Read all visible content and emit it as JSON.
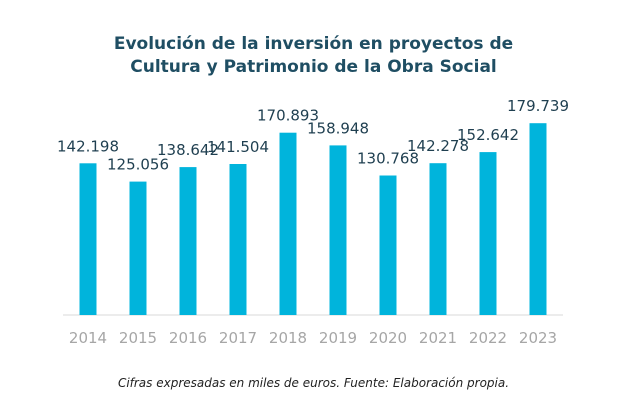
{
  "chart_data": {
    "type": "bar",
    "title_line1": "Evolución de la inversión en proyectos de",
    "title_line2": "Cultura y Patrimonio de la Obra Social",
    "categories": [
      "2014",
      "2015",
      "2016",
      "2017",
      "2018",
      "2019",
      "2020",
      "2021",
      "2022",
      "2023"
    ],
    "values": [
      142.198,
      125.056,
      138.642,
      141.504,
      170.893,
      158.948,
      130.768,
      142.278,
      152.642,
      179.739
    ],
    "value_labels": [
      "142.198",
      "125.056",
      "138.642",
      "141.504",
      "170.893",
      "158.948",
      "130.768",
      "142.278",
      "152.642",
      "179.739"
    ],
    "ylim": [
      0,
      200
    ],
    "grid": false,
    "legend": "none",
    "bar_color": "#00b4dc",
    "axis_color": "#d9d9d9",
    "footnote": "Cifras expresadas en miles de euros. Fuente: Elaboración propia."
  }
}
